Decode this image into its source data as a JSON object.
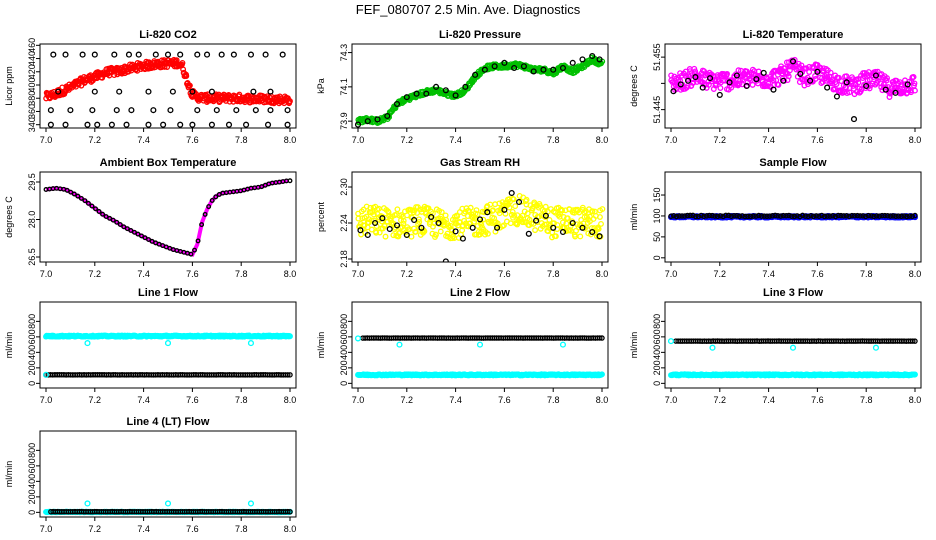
{
  "figure_title": "FEF_080707  2.5 Min. Ave. Diagnostics",
  "colors": {
    "red": "#ff0000",
    "green": "#00c000",
    "magenta": "#ff00ff",
    "yellow": "#ffff00",
    "blue": "#0000ff",
    "cyan": "#00ffff",
    "black": "#000000"
  },
  "chart_data": [
    {
      "type": "scatter",
      "title": "Li-820 CO2",
      "ylabel": "Licor ppm",
      "xlim": [
        7.0,
        8.0
      ],
      "ylim": [
        335,
        462
      ],
      "xticks": [
        "7.0",
        "7.2",
        "7.4",
        "7.6",
        "7.8",
        "8.0"
      ],
      "yticks": [
        340,
        360,
        380,
        400,
        420,
        440,
        460
      ],
      "series": [
        {
          "name": "dense",
          "color": "red",
          "style": "dense",
          "x": [
            7.0,
            7.02,
            7.04,
            7.06,
            7.08,
            7.1,
            7.12,
            7.14,
            7.16,
            7.18,
            7.2,
            7.22,
            7.24,
            7.26,
            7.28,
            7.3,
            7.32,
            7.34,
            7.36,
            7.38,
            7.4,
            7.42,
            7.44,
            7.46,
            7.48,
            7.5,
            7.52,
            7.54,
            7.56,
            7.58,
            7.6,
            7.62,
            7.64,
            7.66,
            7.7,
            7.75,
            7.8,
            7.85,
            7.9,
            7.95,
            7.99
          ],
          "y": [
            382,
            384,
            386,
            390,
            393,
            396,
            400,
            404,
            408,
            410,
            412,
            415,
            418,
            420,
            420,
            421,
            423,
            425,
            426,
            428,
            429,
            430,
            431,
            432,
            432,
            433,
            432,
            434,
            428,
            405,
            386,
            382,
            381,
            380,
            380,
            380,
            380,
            379,
            379,
            378,
            378
          ],
          "spread": 12
        },
        {
          "name": "sparse",
          "color": "black",
          "style": "sparse",
          "rows": [
            {
              "y": 446,
              "x": [
                7.03,
                7.08,
                7.15,
                7.2,
                7.28,
                7.34,
                7.38,
                7.45,
                7.5,
                7.55,
                7.62,
                7.66,
                7.72,
                7.77,
                7.84,
                7.9,
                7.97
              ]
            },
            {
              "y": 390,
              "x": [
                7.05,
                7.2,
                7.3,
                7.42,
                7.52,
                7.6,
                7.68,
                7.85,
                7.92
              ]
            },
            {
              "y": 362,
              "x": [
                7.02,
                7.1,
                7.19,
                7.29,
                7.35,
                7.44,
                7.51,
                7.62,
                7.7,
                7.78,
                7.86,
                7.92,
                7.99
              ]
            },
            {
              "y": 340,
              "x": [
                7.02,
                7.08,
                7.17,
                7.21,
                7.27,
                7.33,
                7.42,
                7.48,
                7.55,
                7.6,
                7.68,
                7.75,
                7.82,
                7.91,
                7.99
              ]
            }
          ]
        }
      ]
    },
    {
      "type": "scatter",
      "title": "Li-820 Pressure",
      "ylabel": "kPa",
      "xlim": [
        7.0,
        8.0
      ],
      "ylim": [
        73.86,
        74.35
      ],
      "xticks": [
        "7.0",
        "7.2",
        "7.4",
        "7.6",
        "7.8",
        "8.0"
      ],
      "yticks": [
        73.9,
        74.1,
        74.3
      ],
      "ytick_labels": [
        "73.9",
        "74.1",
        "74.3"
      ],
      "series": [
        {
          "name": "dense",
          "color": "green",
          "style": "dense",
          "x": [
            7.0,
            7.04,
            7.08,
            7.12,
            7.14,
            7.16,
            7.2,
            7.24,
            7.28,
            7.32,
            7.36,
            7.4,
            7.44,
            7.48,
            7.52,
            7.56,
            7.6,
            7.64,
            7.68,
            7.72,
            7.76,
            7.8,
            7.84,
            7.88,
            7.92,
            7.96,
            7.99
          ],
          "y": [
            73.9,
            73.91,
            73.9,
            73.92,
            73.96,
            74.0,
            74.03,
            74.05,
            74.07,
            74.08,
            74.06,
            74.05,
            74.08,
            74.16,
            74.21,
            74.22,
            74.22,
            74.23,
            74.22,
            74.2,
            74.2,
            74.18,
            74.22,
            74.19,
            74.22,
            74.26,
            74.24
          ],
          "spread": 0.025
        },
        {
          "name": "sparse",
          "color": "black",
          "style": "line_points",
          "x": [
            7.0,
            7.04,
            7.08,
            7.12,
            7.16,
            7.2,
            7.24,
            7.28,
            7.32,
            7.36,
            7.4,
            7.44,
            7.48,
            7.52,
            7.56,
            7.6,
            7.64,
            7.68,
            7.72,
            7.76,
            7.8,
            7.84,
            7.88,
            7.92,
            7.96,
            7.99
          ],
          "y": [
            73.88,
            73.9,
            73.91,
            73.93,
            74.0,
            74.04,
            74.06,
            74.06,
            74.1,
            74.08,
            74.05,
            74.1,
            74.17,
            74.2,
            74.22,
            74.24,
            74.21,
            74.22,
            74.19,
            74.2,
            74.2,
            74.21,
            74.24,
            74.26,
            74.28,
            74.26
          ]
        }
      ]
    },
    {
      "type": "scatter",
      "title": "Li-820 Temperature",
      "ylabel": "degrees C",
      "xlim": [
        7.0,
        8.0
      ],
      "ylim": [
        51.4415,
        51.4575
      ],
      "xticks": [
        "7.0",
        "7.2",
        "7.4",
        "7.6",
        "7.8",
        "8.0"
      ],
      "yticks": [
        51.445,
        51.45,
        51.455
      ],
      "ytick_labels": [
        "51.445",
        "",
        "51.455"
      ],
      "series": [
        {
          "name": "dense",
          "color": "magenta",
          "style": "dense",
          "x": [
            7.0,
            7.05,
            7.1,
            7.15,
            7.2,
            7.25,
            7.3,
            7.35,
            7.4,
            7.45,
            7.5,
            7.55,
            7.6,
            7.65,
            7.7,
            7.75,
            7.8,
            7.85,
            7.9,
            7.95,
            7.99
          ],
          "y": [
            51.45,
            51.4505,
            51.4515,
            51.4505,
            51.4505,
            51.4505,
            51.451,
            51.451,
            51.4508,
            51.4515,
            51.453,
            51.4512,
            51.452,
            51.4508,
            51.4498,
            51.4495,
            51.4505,
            51.4505,
            51.449,
            51.4495,
            51.4498
          ],
          "spread": 0.0035
        },
        {
          "name": "sparse",
          "color": "black",
          "style": "scatter",
          "x": [
            7.01,
            7.04,
            7.07,
            7.1,
            7.13,
            7.16,
            7.2,
            7.24,
            7.27,
            7.31,
            7.35,
            7.38,
            7.42,
            7.46,
            7.5,
            7.53,
            7.57,
            7.6,
            7.64,
            7.68,
            7.72,
            7.75,
            7.8,
            7.84,
            7.88,
            7.92,
            7.97
          ],
          "y": [
            51.4485,
            51.4498,
            51.4505,
            51.4512,
            51.4492,
            51.451,
            51.4478,
            51.4502,
            51.4515,
            51.4495,
            51.4508,
            51.452,
            51.4488,
            51.4505,
            51.4542,
            51.4518,
            51.4505,
            51.4522,
            51.4492,
            51.4475,
            51.4502,
            51.4432,
            51.4495,
            51.4515,
            51.4488,
            51.4482,
            51.4498
          ]
        }
      ]
    },
    {
      "type": "line",
      "title": "Ambient Box Temperature",
      "ylabel": "degrees C",
      "xlim": [
        7.0,
        8.0
      ],
      "ylim": [
        26.3,
        29.9
      ],
      "xticks": [
        "7.0",
        "7.2",
        "7.4",
        "7.6",
        "7.8",
        "8.0"
      ],
      "yticks": [
        26.5,
        28.0,
        29.5
      ],
      "ytick_labels": [
        "26.5",
        "28.0",
        "29.5"
      ],
      "series": [
        {
          "name": "ambient",
          "color": "magenta",
          "style": "thick_line_points",
          "x": [
            7.0,
            7.04,
            7.08,
            7.12,
            7.16,
            7.2,
            7.24,
            7.28,
            7.32,
            7.36,
            7.4,
            7.44,
            7.48,
            7.52,
            7.56,
            7.6,
            7.62,
            7.64,
            7.66,
            7.68,
            7.7,
            7.72,
            7.76,
            7.8,
            7.84,
            7.88,
            7.92,
            7.96,
            7.99
          ],
          "y": [
            29.2,
            29.25,
            29.2,
            29.0,
            28.75,
            28.45,
            28.15,
            27.95,
            27.7,
            27.5,
            27.3,
            27.1,
            26.95,
            26.8,
            26.7,
            26.6,
            27.0,
            27.9,
            28.4,
            28.75,
            28.95,
            29.05,
            29.1,
            29.15,
            29.25,
            29.3,
            29.45,
            29.5,
            29.55
          ]
        }
      ]
    },
    {
      "type": "scatter",
      "title": "Gas Stream RH",
      "ylabel": "percent",
      "xlim": [
        7.0,
        8.0
      ],
      "ylim": [
        2.175,
        2.325
      ],
      "xticks": [
        "7.0",
        "7.2",
        "7.4",
        "7.6",
        "7.8",
        "8.0"
      ],
      "yticks": [
        2.18,
        2.24,
        2.3
      ],
      "ytick_labels": [
        "2.18",
        "2.24",
        "2.30"
      ],
      "series": [
        {
          "name": "dense",
          "color": "yellow",
          "style": "dense",
          "x": [
            7.0,
            7.05,
            7.1,
            7.15,
            7.2,
            7.25,
            7.3,
            7.35,
            7.4,
            7.45,
            7.5,
            7.55,
            7.6,
            7.65,
            7.7,
            7.75,
            7.8,
            7.85,
            7.9,
            7.95,
            7.99
          ],
          "y": [
            2.24,
            2.245,
            2.242,
            2.24,
            2.24,
            2.245,
            2.24,
            2.238,
            2.24,
            2.24,
            2.243,
            2.248,
            2.255,
            2.262,
            2.255,
            2.248,
            2.24,
            2.245,
            2.24,
            2.242,
            2.24
          ],
          "spread": 0.05
        },
        {
          "name": "sparse",
          "color": "black",
          "style": "scatter",
          "x": [
            7.01,
            7.04,
            7.07,
            7.1,
            7.13,
            7.16,
            7.2,
            7.23,
            7.26,
            7.3,
            7.33,
            7.36,
            7.4,
            7.43,
            7.47,
            7.5,
            7.53,
            7.57,
            7.6,
            7.63,
            7.66,
            7.7,
            7.73,
            7.77,
            7.8,
            7.84,
            7.88,
            7.92,
            7.96,
            7.99
          ],
          "y": [
            2.228,
            2.22,
            2.24,
            2.248,
            2.23,
            2.236,
            2.22,
            2.245,
            2.232,
            2.25,
            2.24,
            2.176,
            2.226,
            2.214,
            2.232,
            2.246,
            2.258,
            2.232,
            2.262,
            2.29,
            2.275,
            2.222,
            2.244,
            2.252,
            2.232,
            2.225,
            2.24,
            2.232,
            2.225,
            2.218
          ]
        }
      ]
    },
    {
      "type": "scatter",
      "title": "Sample Flow",
      "ylabel": "ml/min",
      "xlim": [
        7.0,
        8.0
      ],
      "ylim": [
        -10,
        205
      ],
      "xticks": [
        "7.0",
        "7.2",
        "7.4",
        "7.6",
        "7.8",
        "8.0"
      ],
      "yticks": [
        0,
        50,
        100,
        150
      ],
      "ytick_labels": [
        "0",
        "50",
        "100",
        "150"
      ],
      "series": [
        {
          "name": "blue",
          "color": "blue",
          "style": "flat_dense",
          "y": 98,
          "x0": 7.0,
          "x1": 8.0,
          "spread": 4
        },
        {
          "name": "black",
          "color": "black",
          "style": "flat_points",
          "y": 100,
          "x0": 7.0,
          "x1": 8.0,
          "n": 90,
          "spread": 3
        }
      ]
    },
    {
      "type": "scatter",
      "title": "Line 1 Flow",
      "ylabel": "ml/min",
      "xlim": [
        7.0,
        8.0
      ],
      "ylim": [
        -60,
        1050
      ],
      "xticks": [
        "7.0",
        "7.2",
        "7.4",
        "7.6",
        "7.8",
        "8.0"
      ],
      "yticks": [
        0,
        200,
        400,
        600,
        800
      ],
      "ytick_labels": [
        "0",
        "200",
        "400",
        "600",
        "800"
      ],
      "series": [
        {
          "name": "cyan_high",
          "color": "cyan",
          "style": "flat_dense",
          "y": 610,
          "x0": 7.0,
          "x1": 8.0,
          "spread": 15
        },
        {
          "name": "black_low",
          "color": "black",
          "style": "flat_points",
          "y": 110,
          "x0": 7.0,
          "x1": 8.0,
          "n": 110,
          "spread": 2
        },
        {
          "name": "outliers",
          "color": "cyan",
          "style": "scatter",
          "x": [
            7.0,
            7.17,
            7.5,
            7.84
          ],
          "y": [
            110,
            520,
            520,
            520
          ]
        }
      ]
    },
    {
      "type": "scatter",
      "title": "Line 2 Flow",
      "ylabel": "ml/min",
      "xlim": [
        7.0,
        8.0
      ],
      "ylim": [
        -60,
        1050
      ],
      "xticks": [
        "7.0",
        "7.2",
        "7.4",
        "7.6",
        "7.8",
        "8.0"
      ],
      "yticks": [
        0,
        200,
        400,
        600,
        800
      ],
      "ytick_labels": [
        "0",
        "200",
        "400",
        "600",
        "800"
      ],
      "series": [
        {
          "name": "cyan_low",
          "color": "cyan",
          "style": "flat_dense",
          "y": 110,
          "x0": 7.0,
          "x1": 8.0,
          "spread": 15
        },
        {
          "name": "black_high",
          "color": "black",
          "style": "flat_points",
          "y": 585,
          "x0": 7.02,
          "x1": 8.0,
          "n": 110,
          "spread": 2
        },
        {
          "name": "outliers",
          "color": "cyan",
          "style": "scatter",
          "x": [
            7.0,
            7.17,
            7.5,
            7.84
          ],
          "y": [
            580,
            500,
            500,
            500
          ]
        }
      ]
    },
    {
      "type": "scatter",
      "title": "Line 3 Flow",
      "ylabel": "ml/min",
      "xlim": [
        7.0,
        8.0
      ],
      "ylim": [
        -60,
        1050
      ],
      "xticks": [
        "7.0",
        "7.2",
        "7.4",
        "7.6",
        "7.8",
        "8.0"
      ],
      "yticks": [
        0,
        200,
        400,
        600,
        800
      ],
      "ytick_labels": [
        "0",
        "200",
        "400",
        "600",
        "800"
      ],
      "series": [
        {
          "name": "cyan_low",
          "color": "cyan",
          "style": "flat_dense",
          "y": 110,
          "x0": 7.0,
          "x1": 8.0,
          "spread": 15
        },
        {
          "name": "black_high",
          "color": "black",
          "style": "flat_points",
          "y": 545,
          "x0": 7.02,
          "x1": 8.0,
          "n": 110,
          "spread": 2
        },
        {
          "name": "outliers",
          "color": "cyan",
          "style": "scatter",
          "x": [
            7.0,
            7.17,
            7.5,
            7.84
          ],
          "y": [
            545,
            460,
            460,
            460
          ]
        }
      ]
    },
    {
      "type": "scatter",
      "title": "Line 4 (LT) Flow",
      "ylabel": "ml/min",
      "xlim": [
        7.0,
        8.0
      ],
      "ylim": [
        -60,
        1050
      ],
      "xticks": [
        "7.0",
        "7.2",
        "7.4",
        "7.6",
        "7.8",
        "8.0"
      ],
      "yticks": [
        0,
        200,
        400,
        600,
        800
      ],
      "ytick_labels": [
        "0",
        "200",
        "400",
        "600",
        "800"
      ],
      "series": [
        {
          "name": "cyan_low",
          "color": "cyan",
          "style": "flat_dense",
          "y": 5,
          "x0": 7.0,
          "x1": 8.0,
          "spread": 8
        },
        {
          "name": "black_low",
          "color": "black",
          "style": "flat_points",
          "y": 8,
          "x0": 7.02,
          "x1": 8.0,
          "n": 110,
          "spread": 2
        },
        {
          "name": "outliers",
          "color": "cyan",
          "style": "scatter",
          "x": [
            7.17,
            7.5,
            7.84
          ],
          "y": [
            115,
            115,
            115
          ]
        }
      ]
    }
  ]
}
